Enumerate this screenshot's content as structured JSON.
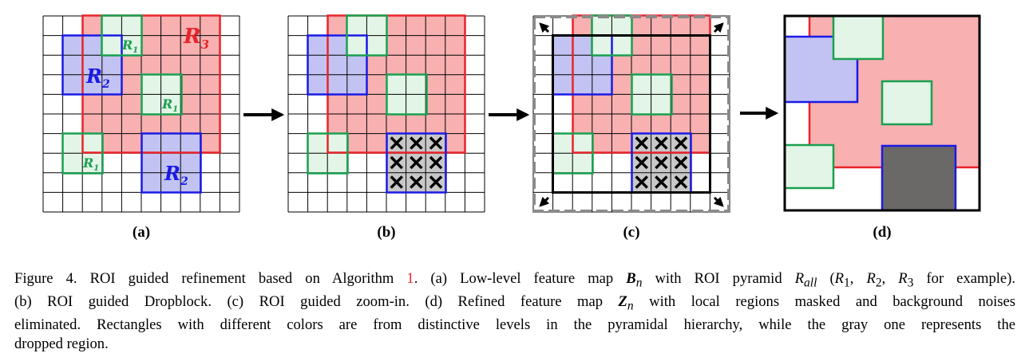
{
  "panels": [
    {
      "label": "(a)"
    },
    {
      "label": "(b)"
    },
    {
      "label": "(c)"
    },
    {
      "label": "(d)"
    }
  ],
  "roi_labels": {
    "r1": "R",
    "r1_sub": "1",
    "r2": "R",
    "r2_sub": "2",
    "r3": "R",
    "r3_sub": "3"
  },
  "drop_mark": "✕",
  "colors": {
    "r1": "#1aa050",
    "r2": "#1a1ae6",
    "r3": "#e8242b",
    "r1_fill": "#e2f5e6",
    "r2_fill": "#c2c3f2",
    "r3_fill": "#f8b0b0",
    "grid": "#000000",
    "dropped_fill": "#c8c8c8",
    "masked_fill": "#6b6868",
    "crop_dash": "#8a8a8a",
    "algo_ref": "#e8242b"
  },
  "caption": {
    "line1_a": "Figure 4. ROI guided refinement based on Algorithm ",
    "algo_ref": "1",
    "line1_b": ". (a) Low-level feature map ",
    "bn_sym": "B",
    "bn_sub": "n",
    "line1_c": " with ROI pyramid ",
    "rall_sym": "R",
    "rall_sub": "all",
    "line1_d": " (",
    "r1_sym": "R",
    "r1_sub": "1",
    "sep1": ", ",
    "r2_sym": "R",
    "r2_sub": "2",
    "sep2": ", ",
    "r3_sym": "R",
    "r3_sub": "3",
    "line1_e": " for example).",
    "line2_a": "(b) ROI guided Dropblock.  (c) ROI guided zoom-in.  (d) Refined feature map ",
    "zn_sym": "Z",
    "zn_sub": "n",
    "line2_b": " with local regions masked and background noises",
    "line3": "eliminated.  Rectangles with different colors are from distinctive levels in the pyramidal hierarchy, while the gray one represents the",
    "line4": "dropped region."
  }
}
